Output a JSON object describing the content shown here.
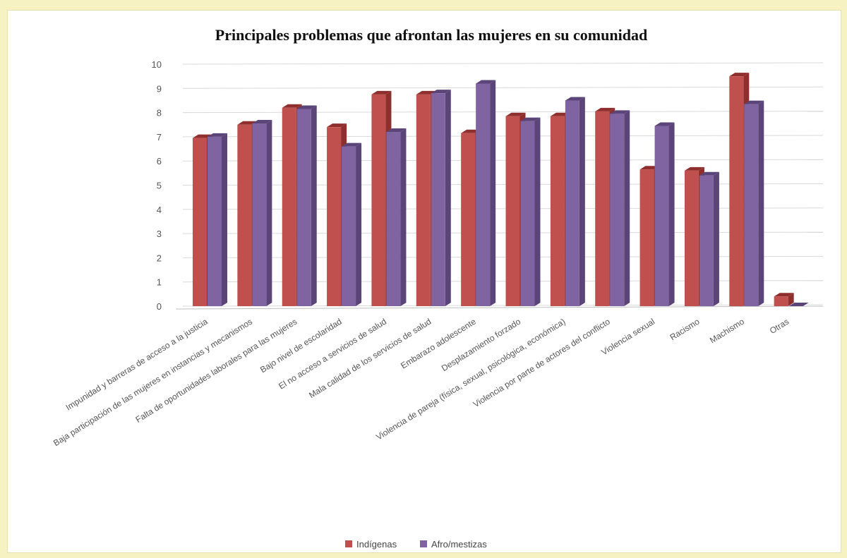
{
  "colors": {
    "indigenas": "#c0504d",
    "indigenas_dark": "#8e2f2d",
    "afro": "#8064a2",
    "afro_dark": "#5a4478",
    "grid": "#d9d9d9",
    "background": "#f7f2c2"
  },
  "chart_data": {
    "type": "bar",
    "title": "Principales problemas que afrontan las mujeres en su comunidad",
    "xlabel": "",
    "ylabel": "",
    "ylim": [
      0,
      10
    ],
    "yticks": [
      "0",
      "1",
      "2",
      "3",
      "4",
      "5",
      "6",
      "7",
      "8",
      "9",
      "10"
    ],
    "grid": true,
    "legend_position": "bottom",
    "categories": [
      "Impunidad y barreras de acceso a la justicia",
      "Baja participación de las mujeres en instancias y mecanismos",
      "Falta de oportunidades laborales para las mujeres",
      "Bajo nivel de escolaridad",
      "El no acceso a servicios de salud",
      "Mala calidad de los servicios de salud",
      "Embarazo adolescente",
      "Desplazamiento forzado",
      "Violencia de pareja (física, sexual, psicológica, económica)",
      "Violencia por parte de actores del conflicto",
      "Violencia sexual",
      "Racismo",
      "Machismo",
      "Otras"
    ],
    "series": [
      {
        "name": "Indígenas",
        "values": [
          6.95,
          7.5,
          8.2,
          7.4,
          8.75,
          8.75,
          7.15,
          7.85,
          7.85,
          8.05,
          5.65,
          5.6,
          9.5,
          0.4
        ]
      },
      {
        "name": "Afro/mestizas",
        "values": [
          7.0,
          7.55,
          8.15,
          6.6,
          7.2,
          8.8,
          9.2,
          7.65,
          8.5,
          7.95,
          7.45,
          5.4,
          8.35,
          0.0
        ]
      }
    ]
  }
}
